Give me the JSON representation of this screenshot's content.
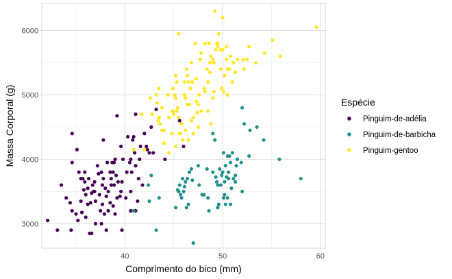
{
  "chart_data": {
    "type": "scatter",
    "title": "",
    "xlabel": "Comprimento do bico (mm)",
    "ylabel": "Massa Corporal (g)",
    "xlim": [
      31.5,
      60.5
    ],
    "ylim": [
      2620,
      6420
    ],
    "xticks": [
      40,
      50,
      60
    ],
    "yticks": [
      3000,
      4000,
      5000,
      6000
    ],
    "grid": true,
    "legend": {
      "title": "Espécie",
      "placement": "right"
    },
    "series": [
      {
        "name": "Pinguim-de-adélia",
        "color": "#440154",
        "points": [
          [
            32.1,
            3050
          ],
          [
            33.1,
            2900
          ],
          [
            33.5,
            3600
          ],
          [
            34.0,
            3400
          ],
          [
            34.4,
            3325
          ],
          [
            34.5,
            2900
          ],
          [
            34.6,
            3200
          ],
          [
            34.6,
            4400
          ],
          [
            35.0,
            3150
          ],
          [
            35.1,
            4150
          ],
          [
            35.2,
            3050
          ],
          [
            35.3,
            3800
          ],
          [
            35.5,
            3700
          ],
          [
            35.5,
            3350
          ],
          [
            35.6,
            3175
          ],
          [
            35.7,
            3700
          ],
          [
            35.8,
            3525
          ],
          [
            35.9,
            3800
          ],
          [
            36.0,
            3450
          ],
          [
            36.0,
            3100
          ],
          [
            36.2,
            3300
          ],
          [
            36.2,
            3550
          ],
          [
            36.3,
            3700
          ],
          [
            36.4,
            2850
          ],
          [
            36.5,
            3325
          ],
          [
            36.6,
            3475
          ],
          [
            36.7,
            3600
          ],
          [
            36.8,
            3500
          ],
          [
            36.9,
            3650
          ],
          [
            37.0,
            3350
          ],
          [
            37.0,
            3000
          ],
          [
            37.2,
            3900
          ],
          [
            37.3,
            3775
          ],
          [
            37.4,
            3450
          ],
          [
            37.5,
            3200
          ],
          [
            37.6,
            3800
          ],
          [
            37.7,
            3600
          ],
          [
            37.7,
            3300
          ],
          [
            37.8,
            3700
          ],
          [
            37.8,
            4300
          ],
          [
            37.9,
            3150
          ],
          [
            38.0,
            3550
          ],
          [
            38.1,
            3425
          ],
          [
            38.1,
            2900
          ],
          [
            38.2,
            3950
          ],
          [
            38.3,
            3500
          ],
          [
            38.5,
            3325
          ],
          [
            38.5,
            3800
          ],
          [
            38.6,
            3600
          ],
          [
            38.6,
            3700
          ],
          [
            38.7,
            3950
          ],
          [
            38.8,
            3800
          ],
          [
            38.8,
            3275
          ],
          [
            38.9,
            3600
          ],
          [
            39.0,
            3150
          ],
          [
            39.0,
            4000
          ],
          [
            39.1,
            3750
          ],
          [
            39.2,
            3400
          ],
          [
            39.2,
            4675
          ],
          [
            39.3,
            3650
          ],
          [
            39.5,
            3425
          ],
          [
            39.6,
            3500
          ],
          [
            39.6,
            4200
          ],
          [
            39.7,
            3650
          ],
          [
            39.8,
            4000
          ],
          [
            40.1,
            3400
          ],
          [
            40.2,
            3800
          ],
          [
            40.3,
            4350
          ],
          [
            40.5,
            3950
          ],
          [
            40.6,
            3500
          ],
          [
            40.6,
            4000
          ],
          [
            40.7,
            3800
          ],
          [
            40.8,
            4300
          ],
          [
            40.9,
            4350
          ],
          [
            41.0,
            4100
          ],
          [
            41.1,
            3900
          ],
          [
            41.1,
            4700
          ],
          [
            41.3,
            3350
          ],
          [
            41.4,
            3700
          ],
          [
            41.5,
            4000
          ],
          [
            41.6,
            4200
          ],
          [
            41.8,
            3600
          ],
          [
            42.0,
            4400
          ],
          [
            42.2,
            4200
          ],
          [
            42.3,
            4150
          ],
          [
            42.5,
            4100
          ],
          [
            42.7,
            4500
          ],
          [
            42.9,
            4100
          ],
          [
            43.2,
            4775
          ],
          [
            44.1,
            4000
          ],
          [
            45.6,
            4600
          ],
          [
            46.0,
            4200
          ],
          [
            37.6,
            3000
          ],
          [
            36.6,
            2850
          ],
          [
            34.6,
            3950
          ],
          [
            35.9,
            3650
          ],
          [
            38.9,
            3950
          ],
          [
            40.6,
            3200
          ],
          [
            39.7,
            2900
          ],
          [
            41.1,
            3200
          ],
          [
            36.9,
            3500
          ],
          [
            38.3,
            3200
          ]
        ]
      },
      {
        "name": "Pinguim-de-barbicha",
        "color": "#21908c",
        "points": [
          [
            40.9,
            3200
          ],
          [
            42.4,
            3600
          ],
          [
            42.5,
            3350
          ],
          [
            42.7,
            3750
          ],
          [
            43.2,
            2900
          ],
          [
            43.5,
            3400
          ],
          [
            45.2,
            3250
          ],
          [
            45.4,
            3525
          ],
          [
            45.5,
            3500
          ],
          [
            45.6,
            3600
          ],
          [
            45.7,
            3450
          ],
          [
            45.9,
            3700
          ],
          [
            46.0,
            3500
          ],
          [
            46.1,
            3575
          ],
          [
            46.2,
            3650
          ],
          [
            46.3,
            3250
          ],
          [
            46.4,
            3700
          ],
          [
            46.5,
            3300
          ],
          [
            46.6,
            3800
          ],
          [
            46.8,
            3850
          ],
          [
            46.9,
            3675
          ],
          [
            47.0,
            2700
          ],
          [
            47.5,
            3900
          ],
          [
            47.6,
            3600
          ],
          [
            48.1,
            3450
          ],
          [
            48.5,
            3400
          ],
          [
            49.0,
            3800
          ],
          [
            49.2,
            4300
          ],
          [
            49.3,
            3725
          ],
          [
            49.5,
            3600
          ],
          [
            49.6,
            3300
          ],
          [
            49.7,
            3850
          ],
          [
            49.8,
            3600
          ],
          [
            49.9,
            3750
          ],
          [
            50.0,
            3800
          ],
          [
            50.1,
            4100
          ],
          [
            50.2,
            3650
          ],
          [
            50.3,
            3900
          ],
          [
            50.4,
            3725
          ],
          [
            50.5,
            4050
          ],
          [
            50.6,
            3800
          ],
          [
            50.7,
            4050
          ],
          [
            50.8,
            3950
          ],
          [
            51.0,
            4100
          ],
          [
            51.1,
            3700
          ],
          [
            51.3,
            3750
          ],
          [
            51.4,
            3900
          ],
          [
            51.5,
            4000
          ],
          [
            51.9,
            3950
          ],
          [
            52.0,
            4800
          ],
          [
            52.2,
            4550
          ],
          [
            52.7,
            4050
          ],
          [
            52.8,
            4450
          ],
          [
            53.5,
            4500
          ],
          [
            54.2,
            4300
          ],
          [
            55.8,
            4000
          ],
          [
            58.0,
            3700
          ],
          [
            49.0,
            4400
          ],
          [
            48.4,
            3850
          ],
          [
            48.6,
            3200
          ],
          [
            50.9,
            3550
          ],
          [
            50.6,
            3700
          ],
          [
            49.5,
            3250
          ],
          [
            47.9,
            3450
          ],
          [
            50.1,
            3400
          ],
          [
            51.3,
            3650
          ],
          [
            50.8,
            3300
          ],
          [
            49.4,
            3650
          ],
          [
            45.8,
            3400
          ],
          [
            50.5,
            3400
          ],
          [
            50.2,
            3450
          ],
          [
            50.3,
            3300
          ],
          [
            52.0,
            3500
          ]
        ]
      },
      {
        "name": "Pinguim-gentoo",
        "color": "#fde725",
        "points": [
          [
            40.9,
            4150
          ],
          [
            41.7,
            4700
          ],
          [
            42.0,
            4150
          ],
          [
            42.6,
            4950
          ],
          [
            42.8,
            4700
          ],
          [
            43.2,
            5000
          ],
          [
            43.3,
            4875
          ],
          [
            43.4,
            4600
          ],
          [
            43.5,
            4650
          ],
          [
            43.6,
            4550
          ],
          [
            43.8,
            4450
          ],
          [
            44.0,
            4250
          ],
          [
            44.4,
            5000
          ],
          [
            44.5,
            4100
          ],
          [
            44.9,
            4750
          ],
          [
            45.1,
            5000
          ],
          [
            45.2,
            5300
          ],
          [
            45.3,
            4750
          ],
          [
            45.4,
            4800
          ],
          [
            45.5,
            4650
          ],
          [
            45.5,
            5950
          ],
          [
            45.7,
            4400
          ],
          [
            45.8,
            4550
          ],
          [
            45.9,
            4300
          ],
          [
            46.1,
            5000
          ],
          [
            46.2,
            4950
          ],
          [
            46.3,
            5400
          ],
          [
            46.4,
            5300
          ],
          [
            46.5,
            5200
          ],
          [
            46.6,
            4850
          ],
          [
            46.7,
            5100
          ],
          [
            46.8,
            5500
          ],
          [
            46.9,
            5200
          ],
          [
            47.0,
            4650
          ],
          [
            47.2,
            5800
          ],
          [
            47.3,
            5250
          ],
          [
            47.4,
            4725
          ],
          [
            47.5,
            4850
          ],
          [
            47.6,
            5000
          ],
          [
            47.7,
            5550
          ],
          [
            47.8,
            5650
          ],
          [
            48.1,
            5100
          ],
          [
            48.2,
            5800
          ],
          [
            48.4,
            5400
          ],
          [
            48.5,
            5200
          ],
          [
            48.6,
            5800
          ],
          [
            48.7,
            5350
          ],
          [
            48.8,
            5600
          ],
          [
            49.0,
            5550
          ],
          [
            49.1,
            5500
          ],
          [
            49.2,
            6300
          ],
          [
            49.3,
            5700
          ],
          [
            49.4,
            5800
          ],
          [
            49.5,
            5800
          ],
          [
            49.6,
            5950
          ],
          [
            49.8,
            5700
          ],
          [
            50.0,
            5700
          ],
          [
            50.1,
            5050
          ],
          [
            50.2,
            5300
          ],
          [
            50.4,
            5550
          ],
          [
            50.5,
            5000
          ],
          [
            50.7,
            5400
          ],
          [
            50.8,
            5600
          ],
          [
            51.1,
            5500
          ],
          [
            51.3,
            5350
          ],
          [
            51.5,
            5550
          ],
          [
            52.1,
            5550
          ],
          [
            52.2,
            5400
          ],
          [
            52.5,
            5550
          ],
          [
            53.4,
            5500
          ],
          [
            54.3,
            5650
          ],
          [
            55.1,
            5850
          ],
          [
            55.9,
            5600
          ],
          [
            59.6,
            6050
          ],
          [
            50.0,
            6200
          ],
          [
            49.5,
            5750
          ],
          [
            44.0,
            4450
          ],
          [
            45.0,
            4700
          ],
          [
            44.8,
            4400
          ],
          [
            45.2,
            4200
          ],
          [
            46.8,
            4600
          ],
          [
            47.5,
            4500
          ],
          [
            46.2,
            4450
          ],
          [
            43.8,
            4800
          ],
          [
            48.2,
            5050
          ],
          [
            47.0,
            4400
          ],
          [
            48.5,
            4750
          ],
          [
            49.1,
            5050
          ],
          [
            46.4,
            4850
          ],
          [
            46.1,
            5200
          ],
          [
            45.6,
            4400
          ],
          [
            44.5,
            4650
          ],
          [
            43.5,
            5100
          ],
          [
            50.5,
            5400
          ],
          [
            49.9,
            5100
          ],
          [
            49.0,
            4950
          ],
          [
            48.7,
            5500
          ],
          [
            47.3,
            4900
          ],
          [
            45.3,
            5200
          ],
          [
            44.9,
            5100
          ],
          [
            46.5,
            4300
          ],
          [
            48.8,
            4550
          ],
          [
            45.2,
            4950
          ],
          [
            47.8,
            4750
          ],
          [
            50.4,
            5750
          ],
          [
            49.8,
            5400
          ],
          [
            51.0,
            5200
          ],
          [
            52.7,
            5750
          ]
        ]
      }
    ]
  }
}
